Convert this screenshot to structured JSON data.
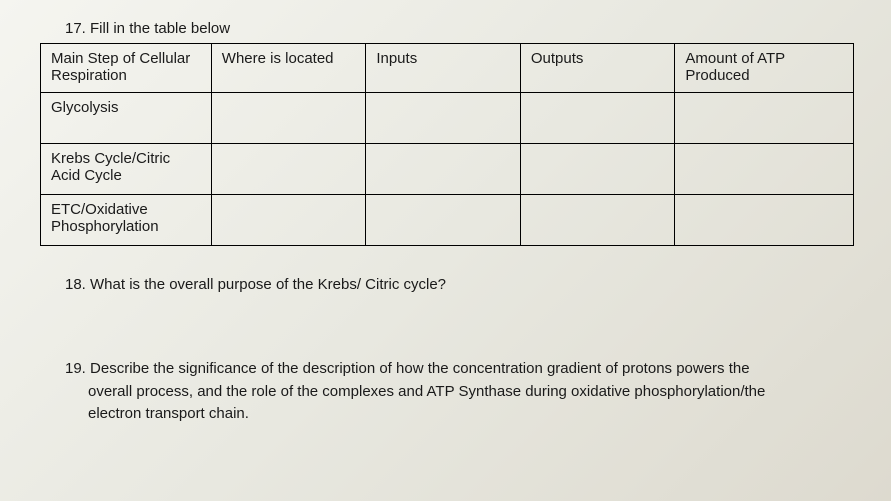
{
  "q17": {
    "prompt": "17. Fill in the table below",
    "headers": [
      "Main Step of Cellular Respiration",
      "Where is located",
      "Inputs",
      "Outputs",
      "Amount of ATP Produced"
    ],
    "rows": [
      {
        "label": "Glycolysis",
        "cells": [
          "",
          "",
          "",
          ""
        ]
      },
      {
        "label": "Krebs Cycle/Citric Acid Cycle",
        "cells": [
          "",
          "",
          "",
          ""
        ]
      },
      {
        "label": "ETC/Oxidative Phosphorylation",
        "cells": [
          "",
          "",
          "",
          ""
        ]
      }
    ]
  },
  "q18": {
    "text": "18. What is the overall purpose of the Krebs/ Citric cycle?"
  },
  "q19": {
    "line1": "19. Describe the significance of the description of how the concentration gradient of protons powers the",
    "line2": "overall process, and the role of the complexes and ATP Synthase during oxidative phosphorylation/the",
    "line3": "electron transport chain."
  }
}
